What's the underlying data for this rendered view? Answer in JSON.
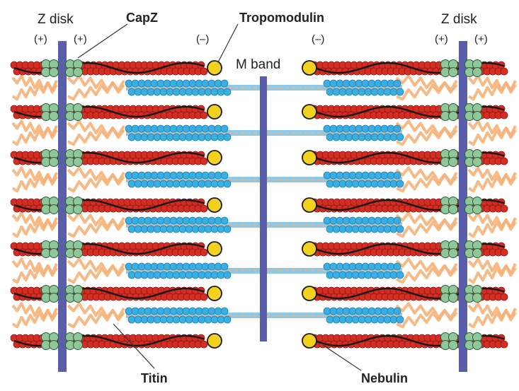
{
  "figure": {
    "labels": {
      "z_disk_left": "Z disk",
      "z_disk_right": "Z disk",
      "capz": "CapZ",
      "tropomodulin": "Tropomodulin",
      "m_band": "M band",
      "titin": "Titin",
      "nebulin": "Nebulin",
      "plus_1": "(+)",
      "plus_2": "(+)",
      "minus_left": "(–)",
      "minus_right": "(–)",
      "plus_3": "(+)",
      "plus_4": "(+)"
    },
    "colors": {
      "z_disk": "#5a5ea8",
      "actin": "#d42d23",
      "nebulin": "#1a1a1a",
      "capz": "#8fc79a",
      "tropomodulin": "#f2d21e",
      "myosin": "#3aaee0",
      "myosin_core": "#8ec8e4",
      "titin": "#f5b27a"
    }
  }
}
